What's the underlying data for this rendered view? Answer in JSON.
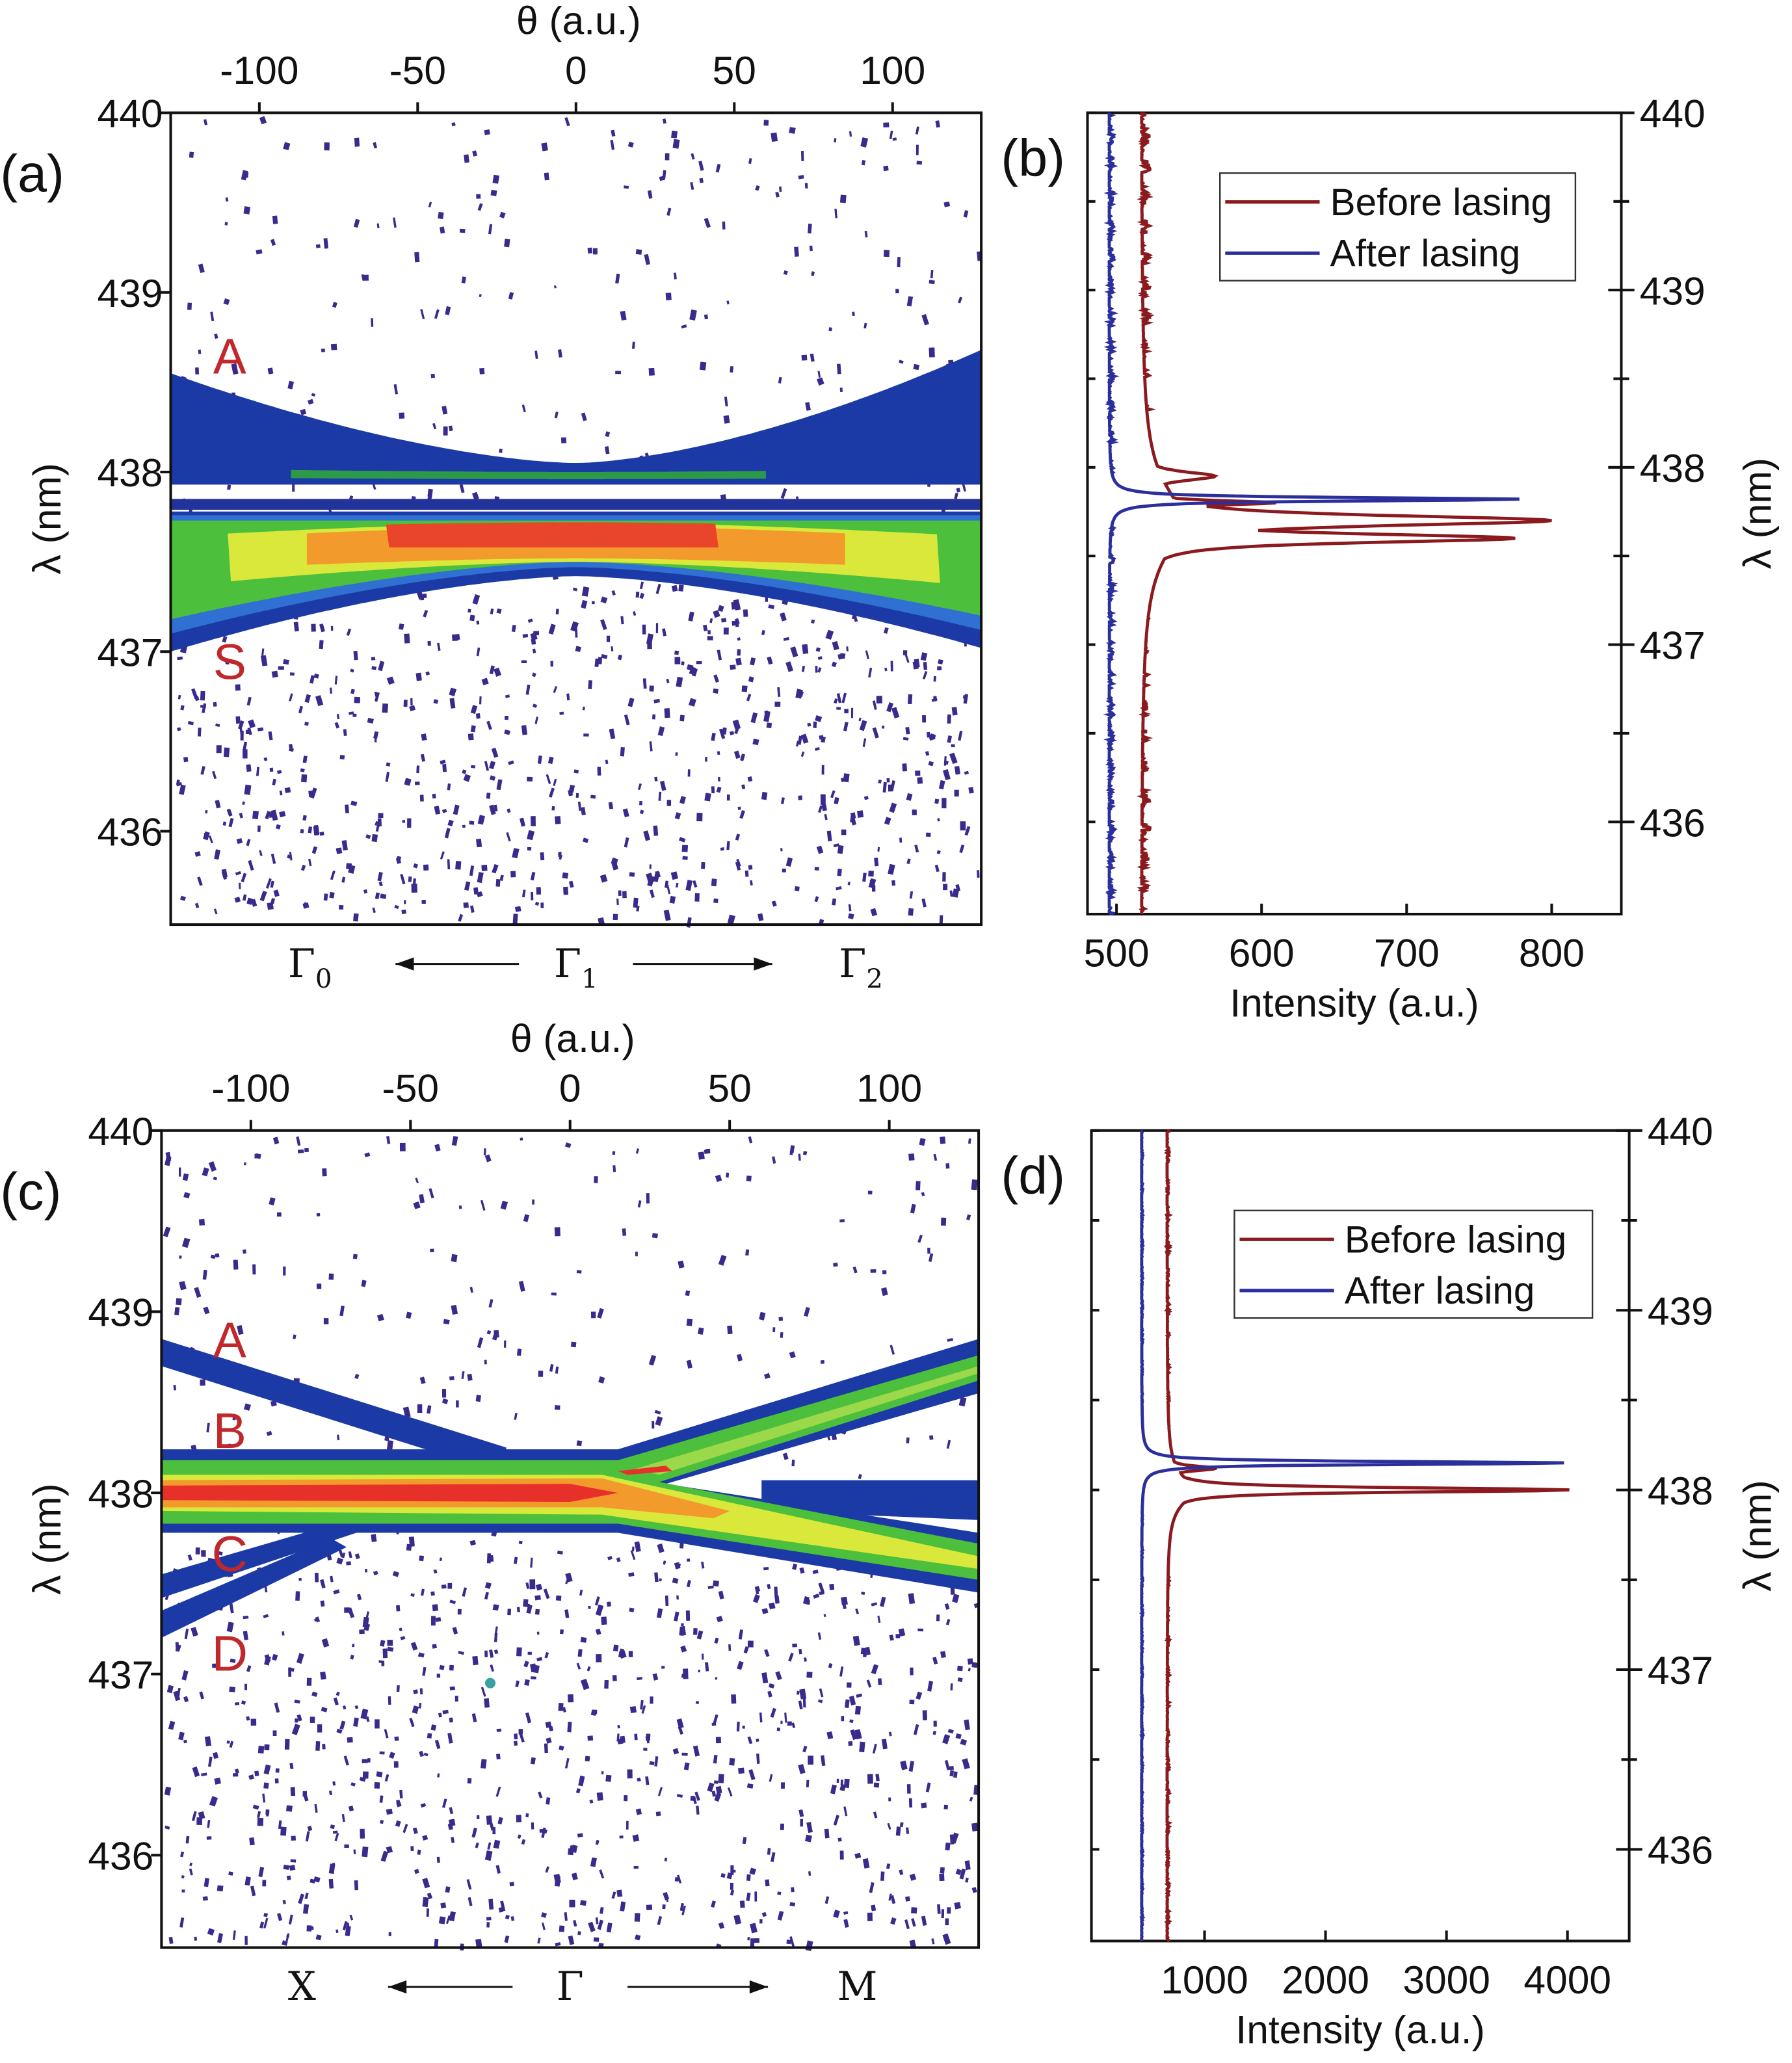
{
  "chart_data": [
    {
      "panel": "(a)",
      "type": "heatmap",
      "title": "",
      "xlabel": "θ (a.u.)",
      "ylabel": "λ (nm)",
      "xlim": [
        -128,
        128
      ],
      "ylim": [
        435.48,
        440
      ],
      "xticks": [
        "-100",
        "-50",
        "0",
        "50",
        "100"
      ],
      "xtick_values": [
        -100,
        -50,
        0,
        50,
        100
      ],
      "yticks": [
        "436",
        "437",
        "438",
        "439",
        "440"
      ],
      "ytick_values": [
        436,
        437,
        438,
        439,
        440
      ],
      "bottom_labels": [
        {
          "main": "Γ",
          "sub": "0"
        },
        {
          "main": "Γ",
          "sub": "1"
        },
        {
          "main": "Γ",
          "sub": "2"
        }
      ],
      "band_labels": [
        {
          "text": "A",
          "lambda": 438.65
        },
        {
          "text": "S",
          "lambda": 436.95
        }
      ],
      "bands": [
        {
          "color": "#1c3aa6",
          "top": [
            438.55,
            438.05,
            438.68
          ],
          "bottom": [
            437.93,
            437.93,
            437.93
          ]
        },
        {
          "color": "#2d9a4a",
          "top": [
            438.02,
            438.0,
            438.02
          ],
          "bottom": [
            437.97,
            437.96,
            437.97
          ],
          "thetaRange": [
            -90,
            60
          ]
        },
        {
          "color": "#23339a",
          "top": [
            437.85,
            437.85,
            437.85
          ],
          "bottom": [
            437.79,
            437.79,
            437.79
          ]
        },
        {
          "color": "#1c3aa6",
          "top": [
            437.78,
            437.78,
            437.78
          ],
          "bottom": [
            437.0,
            437.42,
            437.02
          ]
        },
        {
          "color": "#2f70d2",
          "top": [
            437.76,
            437.76,
            437.76
          ],
          "bottom": [
            437.1,
            437.47,
            437.12
          ]
        },
        {
          "color": "#4cbf3c",
          "top": [
            437.73,
            437.73,
            437.73
          ],
          "bottom": [
            437.18,
            437.5,
            437.2
          ]
        },
        {
          "color": "#d9e83a",
          "top": [
            437.64,
            437.72,
            437.64
          ],
          "bottom": [
            437.36,
            437.5,
            437.36
          ],
          "thetaRange": [
            -110,
            115
          ]
        },
        {
          "color": "#f29a2c",
          "top": [
            437.62,
            437.7,
            437.62
          ],
          "bottom": [
            437.45,
            437.52,
            437.45
          ],
          "thetaRange": [
            -85,
            85
          ]
        },
        {
          "color": "#e8452a",
          "top": [
            437.68,
            437.72,
            437.68
          ],
          "bottom": [
            437.58,
            437.58,
            437.58
          ],
          "thetaRange": [
            -60,
            45
          ]
        }
      ]
    },
    {
      "panel": "(b)",
      "type": "line",
      "xlabel": "Intensity (a.u.)",
      "ylabel": "λ (nm)",
      "xlim": [
        480,
        848
      ],
      "ylim": [
        435.48,
        440
      ],
      "xticks": [
        "500",
        "600",
        "700",
        "800"
      ],
      "xtick_values": [
        500,
        600,
        700,
        800
      ],
      "yticks": [
        "436",
        "437",
        "438",
        "439",
        "440"
      ],
      "ytick_values": [
        436,
        437,
        438,
        439,
        440
      ],
      "legend_position": "top-right",
      "series": [
        {
          "name": "Before lasing",
          "color": "#8b1a1f",
          "baseline": 517,
          "noise": 4,
          "peaks": [
            {
              "lambda": 437.7,
              "intensity": 545,
              "width": 0.25
            },
            {
              "lambda": 437.95,
              "intensity": 568,
              "width": 0.03
            },
            {
              "lambda": 437.8,
              "intensity": 610,
              "width": 0.015
            },
            {
              "lambda": 437.7,
              "intensity": 800,
              "width": 0.035
            },
            {
              "lambda": 437.6,
              "intensity": 775,
              "width": 0.03
            }
          ]
        },
        {
          "name": "After lasing",
          "color": "#2b2f9c",
          "baseline": 495,
          "noise": 2,
          "peaks": [
            {
              "lambda": 437.82,
              "intensity": 778,
              "width": 0.012
            }
          ]
        }
      ]
    },
    {
      "panel": "(c)",
      "type": "heatmap",
      "xlabel": "θ (a.u.)",
      "ylabel": "λ (nm)",
      "xlim": [
        -128,
        128
      ],
      "ylim": [
        435.49,
        440
      ],
      "xticks": [
        "-100",
        "-50",
        "0",
        "50",
        "100"
      ],
      "xtick_values": [
        -100,
        -50,
        0,
        50,
        100
      ],
      "yticks": [
        "436",
        "437",
        "438",
        "439",
        "440"
      ],
      "ytick_values": [
        436,
        437,
        438,
        439,
        440
      ],
      "bottom_labels": [
        {
          "main": "X",
          "sub": ""
        },
        {
          "main": "Γ",
          "sub": ""
        },
        {
          "main": "M",
          "sub": ""
        }
      ],
      "band_labels": [
        {
          "text": "A",
          "lambda": 438.85
        },
        {
          "text": "B",
          "lambda": 438.35
        },
        {
          "text": "C",
          "lambda": 437.67
        },
        {
          "text": "D",
          "lambda": 437.12
        }
      ],
      "polygons": [
        {
          "color": "#1c3aa6",
          "points": [
            [
              -128,
              438.85
            ],
            [
              -20,
              438.25
            ],
            [
              -20,
              438.1
            ],
            [
              -128,
              438.7
            ]
          ]
        },
        {
          "color": "#1c3aa6",
          "points": [
            [
              -128,
              437.55
            ],
            [
              -60,
              437.9
            ],
            [
              -55,
              437.85
            ],
            [
              -128,
              437.42
            ]
          ]
        },
        {
          "color": "#1c3aa6",
          "points": [
            [
              -128,
              437.35
            ],
            [
              -75,
              437.75
            ],
            [
              -70,
              437.7
            ],
            [
              -128,
              437.2
            ]
          ]
        },
        {
          "color": "#1c3aa6",
          "points": [
            [
              60,
              438.07
            ],
            [
              128,
              438.07
            ],
            [
              128,
              437.85
            ],
            [
              60,
              437.9
            ]
          ]
        },
        {
          "color": "#1c3aa6",
          "points": [
            [
              -128,
              438.24
            ],
            [
              15,
              438.24
            ],
            [
              128,
              438.85
            ],
            [
              128,
              438.55
            ],
            [
              30,
              438.05
            ],
            [
              128,
              437.78
            ],
            [
              128,
              437.45
            ],
            [
              15,
              437.78
            ],
            [
              -128,
              437.78
            ]
          ]
        },
        {
          "color": "#4cbf3c",
          "points": [
            [
              -128,
              438.18
            ],
            [
              15,
              438.18
            ],
            [
              128,
              438.76
            ],
            [
              128,
              438.62
            ],
            [
              28,
              438.06
            ],
            [
              128,
              437.72
            ],
            [
              128,
              437.52
            ],
            [
              15,
              437.83
            ],
            [
              -128,
              437.83
            ]
          ]
        },
        {
          "color": "#9bd84a",
          "points": [
            [
              20,
              438.13
            ],
            [
              128,
              438.7
            ],
            [
              128,
              438.66
            ],
            [
              28,
              438.1
            ]
          ]
        },
        {
          "color": "#d9e83a",
          "points": [
            [
              -128,
              438.1
            ],
            [
              10,
              438.1
            ],
            [
              128,
              437.65
            ],
            [
              128,
              437.58
            ],
            [
              10,
              437.88
            ],
            [
              -128,
              437.9
            ]
          ]
        },
        {
          "color": "#f29a2c",
          "points": [
            [
              -128,
              438.07
            ],
            [
              10,
              438.08
            ],
            [
              50,
              437.9
            ],
            [
              45,
              437.86
            ],
            [
              10,
              437.92
            ],
            [
              -128,
              437.92
            ]
          ]
        },
        {
          "color": "#e8302a",
          "points": [
            [
              -128,
              438.04
            ],
            [
              0,
              438.05
            ],
            [
              15,
              438.0
            ],
            [
              0,
              437.95
            ],
            [
              -128,
              437.96
            ]
          ]
        },
        {
          "color": "#e8302a",
          "points": [
            [
              15,
              438.12
            ],
            [
              30,
              438.15
            ],
            [
              32,
              438.12
            ],
            [
              18,
              438.1
            ]
          ]
        }
      ]
    },
    {
      "panel": "(d)",
      "type": "line",
      "xlabel": "Intensity (a.u.)",
      "ylabel": "λ (nm)",
      "xlim": [
        65,
        4510
      ],
      "ylim": [
        435.49,
        440
      ],
      "xticks": [
        "1000",
        "2000",
        "3000",
        "4000"
      ],
      "xtick_values": [
        1000,
        2000,
        3000,
        4000
      ],
      "yticks": [
        "436",
        "437",
        "438",
        "439",
        "440"
      ],
      "ytick_values": [
        436,
        437,
        438,
        439,
        440
      ],
      "legend_position": "top-right",
      "series": [
        {
          "name": "Before lasing",
          "color": "#8b1a1f",
          "baseline": 690,
          "noise": 12,
          "peaks": [
            {
              "lambda": 438.0,
              "intensity": 900,
              "width": 0.1
            },
            {
              "lambda": 438.12,
              "intensity": 1100,
              "width": 0.015
            },
            {
              "lambda": 438.0,
              "intensity": 4020,
              "width": 0.015
            }
          ]
        },
        {
          "name": "After lasing",
          "color": "#2b2f9c",
          "baseline": 480,
          "noise": 6,
          "peaks": [
            {
              "lambda": 438.15,
              "intensity": 4000,
              "width": 0.01
            }
          ]
        }
      ]
    }
  ],
  "labels": {
    "a": "(a)",
    "b": "(b)",
    "c": "(c)",
    "d": "(d)"
  },
  "colors": {
    "noise": "#3a2a8c",
    "axis": "#111111",
    "band_letter": "#c0282c"
  }
}
